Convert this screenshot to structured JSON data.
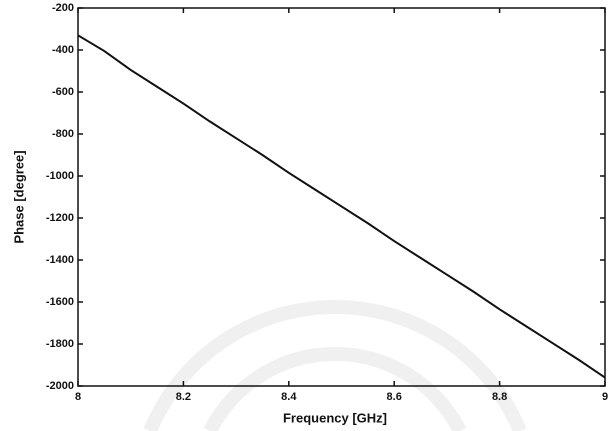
{
  "chart_data": {
    "type": "line",
    "x_label": "Frequency [GHz]",
    "y_label": "Phase [degree]",
    "x": [
      8.0,
      8.05,
      8.1,
      8.15,
      8.2,
      8.25,
      8.3,
      8.35,
      8.4,
      8.45,
      8.5,
      8.55,
      8.6,
      8.65,
      8.7,
      8.75,
      8.8,
      8.85,
      8.9,
      8.95,
      9.0
    ],
    "values": [
      -330,
      -405,
      -495,
      -575,
      -655,
      -740,
      -820,
      -900,
      -985,
      -1065,
      -1145,
      -1225,
      -1310,
      -1390,
      -1470,
      -1550,
      -1635,
      -1715,
      -1795,
      -1875,
      -1960
    ],
    "color": "#111111",
    "xlim": [
      8,
      9
    ],
    "xticks": [
      8,
      8.2,
      8.4,
      8.6,
      8.8,
      9
    ],
    "ylim": [
      -2000,
      -200
    ],
    "yticks": [
      -2000,
      -1800,
      -1600,
      -1400,
      -1200,
      -1000,
      -800,
      -600,
      -400,
      -200
    ],
    "grid": false
  }
}
